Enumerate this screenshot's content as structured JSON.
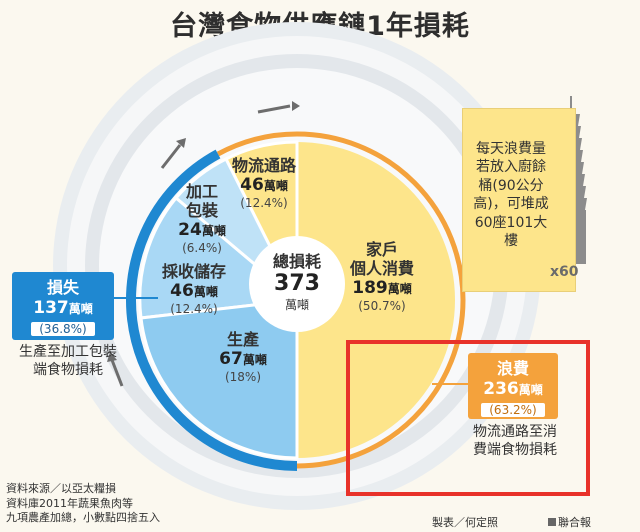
{
  "title": "台灣食物供應鏈1年損耗",
  "colors": {
    "loss_blue": "#1f88d1",
    "loss_light_blue": "#8ecbf0",
    "loss_pale_blue": "#bfe2f7",
    "waste_yellow": "#fde58b",
    "waste_orange": "#f4a23c",
    "highlight_red": "#e8322a"
  },
  "center": {
    "label": "總損耗",
    "value": "373",
    "unit": "萬噸"
  },
  "segments": [
    {
      "id": "logistics",
      "label": "物流通路",
      "value": "46",
      "unit": "萬噸",
      "pct": "(12.4%)"
    },
    {
      "id": "processing",
      "label_line1": "加工",
      "label_line2": "包裝",
      "value": "24",
      "unit": "萬噸",
      "pct": "(6.4%)"
    },
    {
      "id": "harvest",
      "label": "採收儲存",
      "value": "46",
      "unit": "萬噸",
      "pct": "(12.4%)"
    },
    {
      "id": "production",
      "label": "生產",
      "value": "67",
      "unit": "萬噸",
      "pct": "(18%)"
    },
    {
      "id": "household",
      "label_line1": "家戶",
      "label_line2": "個人消費",
      "value": "189",
      "unit": "萬噸",
      "pct": "(50.7%)"
    }
  ],
  "loss": {
    "title": "損失",
    "value": "137",
    "unit": "萬噸",
    "pct": "(36.8%)",
    "note": "生產至加工包裝端食物損耗"
  },
  "waste": {
    "title": "浪費",
    "value": "236",
    "unit": "萬噸",
    "pct": "(63.2%)",
    "note": "物流通路至消費端食物損耗"
  },
  "daily_note": "每天浪費量若放入廚餘桶(90公分高)，可堆成60座101大樓",
  "tower_multiplier": "x60",
  "source": [
    "資料來源／以亞太糧損",
    "資料庫2011年蔬果魚肉等",
    "九項農產加總，小數點四捨五入"
  ],
  "credit": "製表／何定照",
  "publisher": "聯合報"
}
